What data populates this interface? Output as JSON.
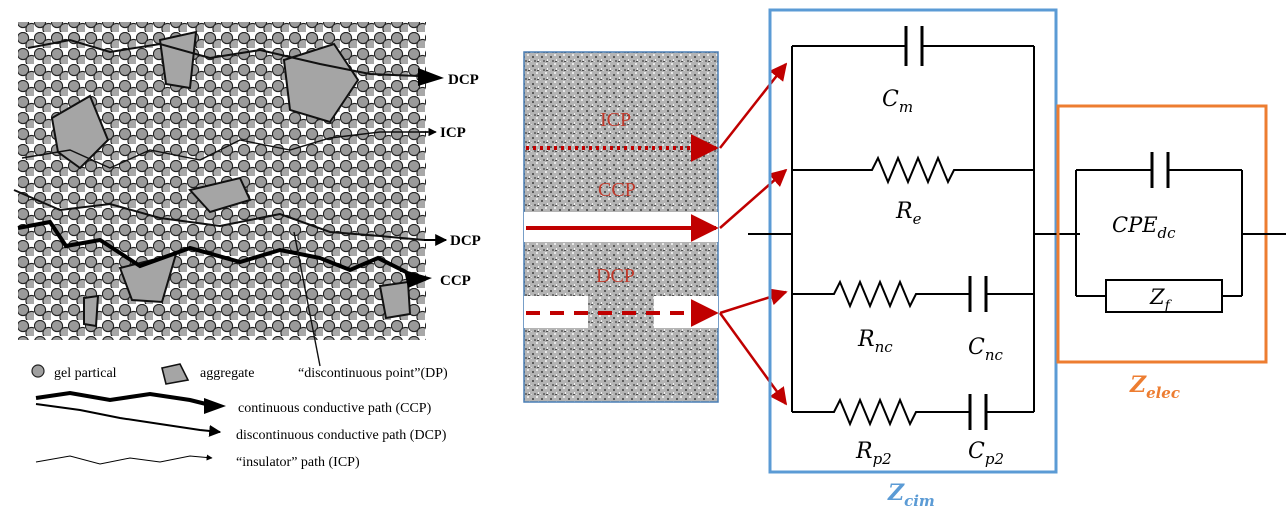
{
  "microstructure": {
    "path_labels": {
      "dcp_top": "DCP",
      "icp": "ICP",
      "dcp_mid": "DCP",
      "ccp": "CCP"
    },
    "legend": {
      "gel": "gel partical",
      "aggregate": "aggregate",
      "dp": "“discontinuous point”(DP)",
      "ccp": "continuous conductive path (CCP)",
      "dcp": "discontinuous conductive path (DCP)",
      "icp": "“insulator” path (ICP)"
    }
  },
  "sample": {
    "labels": {
      "icp": "ICP",
      "ccp": "CCP",
      "dcp": "DCP"
    }
  },
  "circuit": {
    "zcim": {
      "main": "Z",
      "sub": "cim"
    },
    "zelec": {
      "main": "Z",
      "sub": "elec"
    },
    "cm": {
      "main": "C",
      "sub": "m"
    },
    "re": {
      "main": "R",
      "sub": "e"
    },
    "rnc": {
      "main": "R",
      "sub": "nc"
    },
    "cnc": {
      "main": "C",
      "sub": "nc"
    },
    "rp2": {
      "main": "R",
      "sub": "p2"
    },
    "cp2": {
      "main": "C",
      "sub": "p2"
    },
    "cpe": {
      "main": "CPE",
      "sub": "dc"
    },
    "zf": {
      "main": "Z",
      "sub": "f"
    }
  },
  "colors": {
    "accent_red": "#c00000",
    "zcim_blue": "#5b9bd5",
    "zelec_orange": "#ed7d31",
    "label_red": "#c0392b"
  }
}
